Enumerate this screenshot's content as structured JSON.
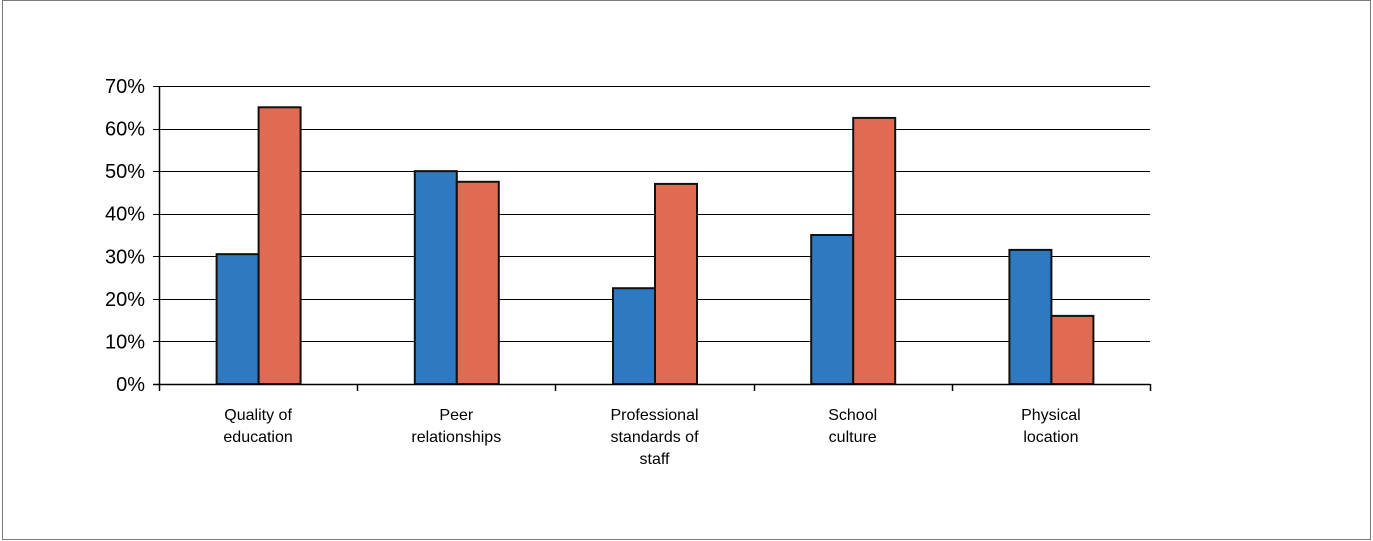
{
  "chart_data": {
    "type": "bar",
    "categories": [
      "Quality of education",
      "Peer relationships",
      "Professional standards of staff",
      "School culture",
      "Physical location"
    ],
    "category_label_lines": [
      [
        "Quality of",
        "education"
      ],
      [
        "Peer",
        "relationships"
      ],
      [
        "Professional",
        "standards of",
        "staff"
      ],
      [
        "School",
        "culture"
      ],
      [
        "Physical",
        "location"
      ]
    ],
    "series": [
      {
        "values": [
          30.5,
          50,
          22.5,
          35,
          31.5
        ],
        "color": "#2f79c0"
      },
      {
        "values": [
          65,
          47.5,
          47,
          62.5,
          16
        ],
        "color": "#e06a52"
      }
    ],
    "y_ticks": [
      0,
      10,
      20,
      30,
      40,
      50,
      60,
      70
    ],
    "y_tick_labels": [
      "0%",
      "10%",
      "20%",
      "30%",
      "40%",
      "50%",
      "60%",
      "70%"
    ],
    "ylim": [
      0,
      70
    ],
    "y_unit": "%",
    "grid": true,
    "legend": "none",
    "title": "",
    "xlabel": "",
    "ylabel": ""
  }
}
